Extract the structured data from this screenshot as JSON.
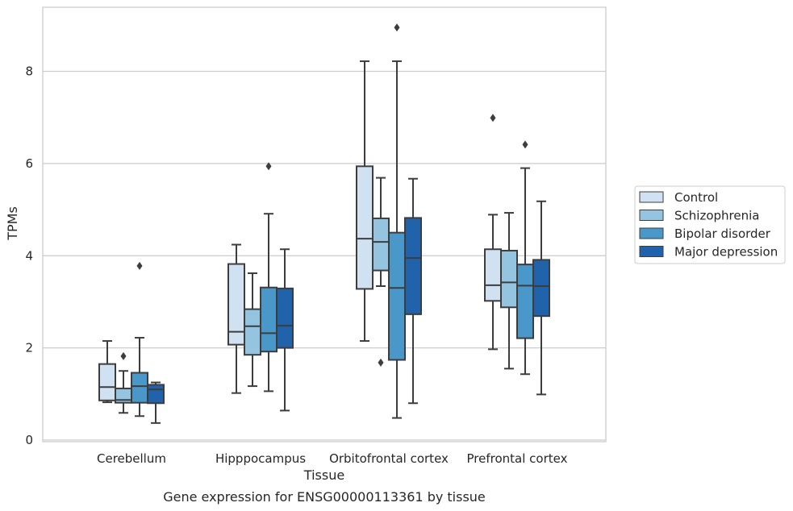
{
  "chart_data": {
    "type": "box",
    "caption": "Gene expression for ENSG00000113361 by tissue",
    "xlabel": "Tissue",
    "ylabel": "TPMs",
    "ylim": [
      0,
      9.4
    ],
    "yticks": [
      0,
      2,
      4,
      6,
      8
    ],
    "grid": "horizontal",
    "legend_position": "right",
    "categories": [
      "Cerebellum",
      "Hipppocampus",
      "Orbitofrontal cortex",
      "Prefrontal cortex"
    ],
    "series": [
      {
        "name": "Control",
        "color": "#d0e1f2",
        "boxes": [
          {
            "whisker_low": 0.82,
            "q1": 0.86,
            "median": 1.15,
            "q3": 1.65,
            "whisker_high": 2.15,
            "outliers": []
          },
          {
            "whisker_low": 1.02,
            "q1": 2.07,
            "median": 2.35,
            "q3": 3.82,
            "whisker_high": 4.24,
            "outliers": []
          },
          {
            "whisker_low": 2.15,
            "q1": 3.28,
            "median": 4.37,
            "q3": 5.94,
            "whisker_high": 8.22,
            "outliers": []
          },
          {
            "whisker_low": 1.97,
            "q1": 3.02,
            "median": 3.36,
            "q3": 4.14,
            "whisker_high": 4.89,
            "outliers": [
              6.99
            ]
          }
        ]
      },
      {
        "name": "Schizophrenia",
        "color": "#94c4df",
        "boxes": [
          {
            "whisker_low": 0.59,
            "q1": 0.81,
            "median": 0.87,
            "q3": 1.12,
            "whisker_high": 1.5,
            "outliers": [
              1.82
            ]
          },
          {
            "whisker_low": 1.17,
            "q1": 1.85,
            "median": 2.47,
            "q3": 2.84,
            "whisker_high": 3.62,
            "outliers": []
          },
          {
            "whisker_low": 3.34,
            "q1": 3.68,
            "median": 4.3,
            "q3": 4.81,
            "whisker_high": 5.69,
            "outliers": [
              1.68
            ]
          },
          {
            "whisker_low": 1.55,
            "q1": 2.88,
            "median": 3.42,
            "q3": 4.11,
            "whisker_high": 4.93,
            "outliers": []
          }
        ]
      },
      {
        "name": "Bipolar disorder",
        "color": "#4a98c9",
        "boxes": [
          {
            "whisker_low": 0.52,
            "q1": 0.81,
            "median": 1.17,
            "q3": 1.46,
            "whisker_high": 2.22,
            "outliers": [
              3.78
            ]
          },
          {
            "whisker_low": 1.06,
            "q1": 1.92,
            "median": 2.32,
            "q3": 3.31,
            "whisker_high": 4.91,
            "outliers": [
              5.94
            ]
          },
          {
            "whisker_low": 0.48,
            "q1": 1.74,
            "median": 3.3,
            "q3": 4.5,
            "whisker_high": 8.22,
            "outliers": [
              8.95
            ]
          },
          {
            "whisker_low": 1.43,
            "q1": 2.21,
            "median": 3.35,
            "q3": 3.81,
            "whisker_high": 5.9,
            "outliers": [
              6.41
            ]
          }
        ]
      },
      {
        "name": "Major depression",
        "color": "#2163aa",
        "boxes": [
          {
            "whisker_low": 0.37,
            "q1": 0.8,
            "median": 1.1,
            "q3": 1.2,
            "whisker_high": 1.25,
            "outliers": []
          },
          {
            "whisker_low": 0.64,
            "q1": 2.0,
            "median": 2.48,
            "q3": 3.29,
            "whisker_high": 4.14,
            "outliers": []
          },
          {
            "whisker_low": 0.8,
            "q1": 2.73,
            "median": 3.95,
            "q3": 4.82,
            "whisker_high": 5.67,
            "outliers": []
          },
          {
            "whisker_low": 0.99,
            "q1": 2.69,
            "median": 3.34,
            "q3": 3.91,
            "whisker_high": 5.18,
            "outliers": []
          }
        ]
      }
    ]
  }
}
